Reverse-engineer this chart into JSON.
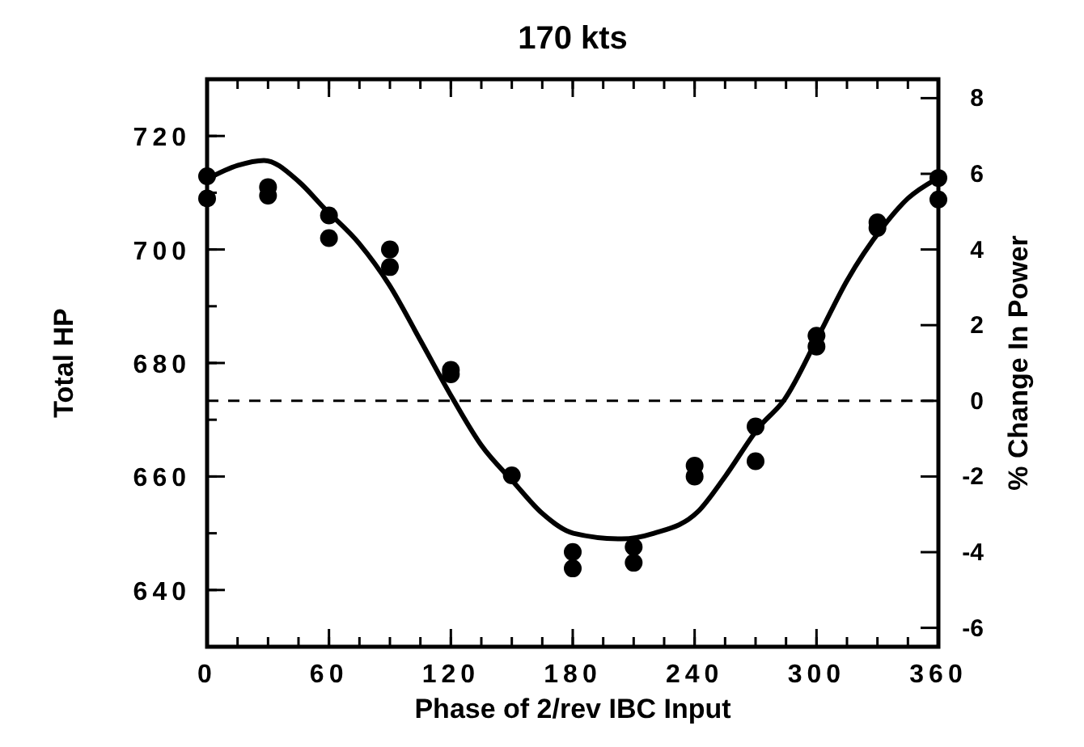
{
  "chart_data": {
    "type": "scatter",
    "title": "170 kts",
    "xlabel": "Phase of 2/rev IBC Input",
    "ylabel": "Total HP",
    "y2label": "% Change In Power",
    "xlim": [
      0,
      360
    ],
    "xticks": [
      0,
      60,
      120,
      180,
      240,
      300,
      360
    ],
    "ylim": [
      630,
      730
    ],
    "yticks": [
      640,
      660,
      680,
      700,
      720
    ],
    "y2lim": [
      -6.5,
      8.5
    ],
    "y2ticks": [
      -6,
      -4,
      -2,
      0,
      2,
      4,
      6,
      8
    ],
    "marker": "circle",
    "grid": false,
    "ref_lines": [
      {
        "axis": "y2",
        "value": 0,
        "line_style": "dashed",
        "color": "#000000"
      }
    ],
    "series": [
      {
        "color": "#000000",
        "x": [
          0,
          0,
          30,
          30,
          60,
          60,
          90,
          90,
          120,
          120,
          150,
          180,
          180,
          210,
          210,
          240,
          240,
          270,
          270,
          300,
          300,
          330,
          330,
          360,
          360
        ],
        "values": [
          712.9,
          709,
          711,
          709.5,
          706,
          702,
          700,
          696.9,
          678.8,
          678,
          660.2,
          646.7,
          643.8,
          647.6,
          644.8,
          661.9,
          660,
          668.8,
          662.7,
          684.8,
          682.9,
          704.8,
          703.8,
          712.6,
          708.8
        ]
      },
      {
        "type": "line",
        "color": "#000000",
        "marker": "none",
        "line_style": "solid",
        "x": [
          0,
          15,
          28,
          45,
          57.6,
          75,
          89.6,
          105,
          120.8,
          135,
          150.9,
          165,
          180.3,
          204,
          220,
          241.6,
          255,
          271.5,
          284.3,
          301.6,
          315,
          332.3,
          345,
          358.9
        ],
        "values": [
          712.4,
          714.8,
          715.7,
          712,
          707.3,
          701,
          693.8,
          684,
          673.8,
          665.5,
          659,
          653.5,
          650,
          649,
          650,
          653.8,
          660,
          668.6,
          673.6,
          685.2,
          694.5,
          703.8,
          709,
          712.4
        ]
      }
    ]
  }
}
